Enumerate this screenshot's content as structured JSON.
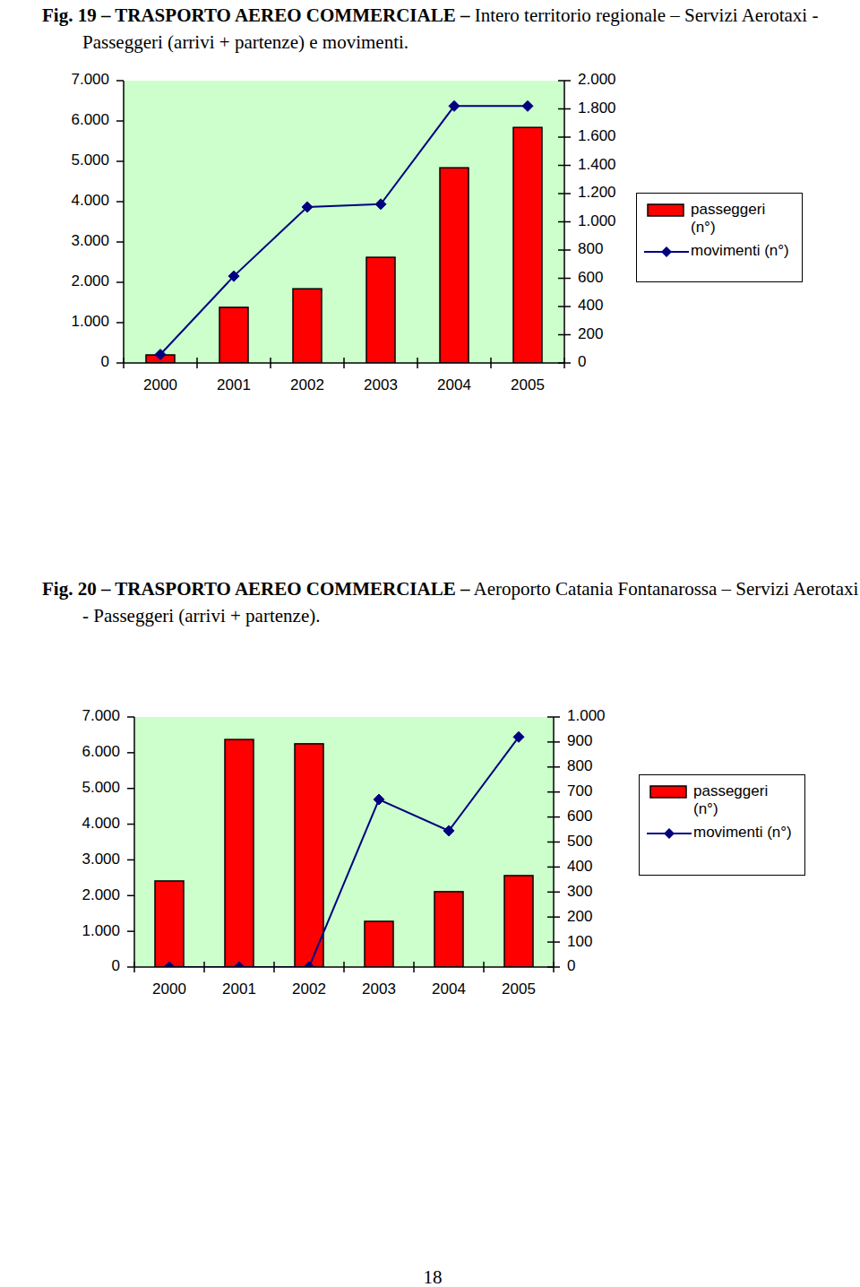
{
  "chart_data": [
    {
      "type": "bar",
      "title": "Fig. 19 – TRASPORTO AEREO COMMERCIALE –",
      "subtitle": "Intero territorio regionale – Servizi Aerotaxi - Passeggeri (arrivi + partenze) e movimenti.",
      "categories": [
        "2000",
        "2001",
        "2002",
        "2003",
        "2004",
        "2005"
      ],
      "series": [
        {
          "name": "passeggeri (n°)",
          "type": "bar",
          "color": "#ff0000",
          "values": [
            200,
            1380,
            1840,
            2620,
            4840,
            5840
          ]
        },
        {
          "name": "movimenti (n°)",
          "type": "line",
          "axis": "y2",
          "color": "#000080",
          "marker": "diamond",
          "values": [
            60,
            615,
            1105,
            1125,
            1820,
            1820
          ]
        }
      ],
      "ylim": [
        0,
        7000
      ],
      "yticks": [
        0,
        {
          "value": 1000,
          "label": "1.000"
        },
        {
          "value": 2000,
          "label": "2.000"
        },
        {
          "value": 3000,
          "label": "3.000"
        },
        {
          "value": 4000,
          "label": "4.000"
        },
        {
          "value": 5000,
          "label": "5.000"
        },
        {
          "value": 6000,
          "label": "6.000"
        },
        {
          "value": 7000,
          "label": "7.000"
        }
      ],
      "y2lim": [
        0,
        2000
      ],
      "y2ticks": [
        0,
        200,
        400,
        600,
        800,
        {
          "value": 1000,
          "label": "1.000"
        },
        {
          "value": 1200,
          "label": "1.200"
        },
        {
          "value": 1400,
          "label": "1.400"
        },
        {
          "value": 1600,
          "label": "1.600"
        },
        {
          "value": 1800,
          "label": "1.800"
        },
        {
          "value": 2000,
          "label": "2.000"
        }
      ],
      "grid": false,
      "legend": "right"
    },
    {
      "type": "bar",
      "title": "Fig. 20 – TRASPORTO AEREO COMMERCIALE –",
      "subtitle": "Aeroporto Catania Fontanarossa – Servizi Aerotaxi - Passeggeri (arrivi + partenze).",
      "categories": [
        "2000",
        "2001",
        "2002",
        "2003",
        "2004",
        "2005"
      ],
      "series": [
        {
          "name": "passeggeri (n°)",
          "type": "bar",
          "color": "#ff0000",
          "values": [
            2410,
            6370,
            6250,
            1280,
            2110,
            2560
          ]
        },
        {
          "name": "movimenti (n°)",
          "type": "line",
          "axis": "y2",
          "color": "#000080",
          "marker": "diamond",
          "values": [
            0,
            0,
            0,
            670,
            545,
            920
          ]
        }
      ],
      "ylim": [
        0,
        7000
      ],
      "yticks": [
        0,
        {
          "value": 1000,
          "label": "1.000"
        },
        {
          "value": 2000,
          "label": "2.000"
        },
        {
          "value": 3000,
          "label": "3.000"
        },
        {
          "value": 4000,
          "label": "4.000"
        },
        {
          "value": 5000,
          "label": "5.000"
        },
        {
          "value": 6000,
          "label": "6.000"
        },
        {
          "value": 7000,
          "label": "7.000"
        }
      ],
      "y2lim": [
        0,
        1000
      ],
      "y2ticks": [
        0,
        100,
        200,
        300,
        400,
        500,
        600,
        700,
        800,
        900,
        {
          "value": 1000,
          "label": "1.000"
        }
      ],
      "grid": false,
      "legend": "right"
    }
  ],
  "page": {
    "number": "18"
  }
}
